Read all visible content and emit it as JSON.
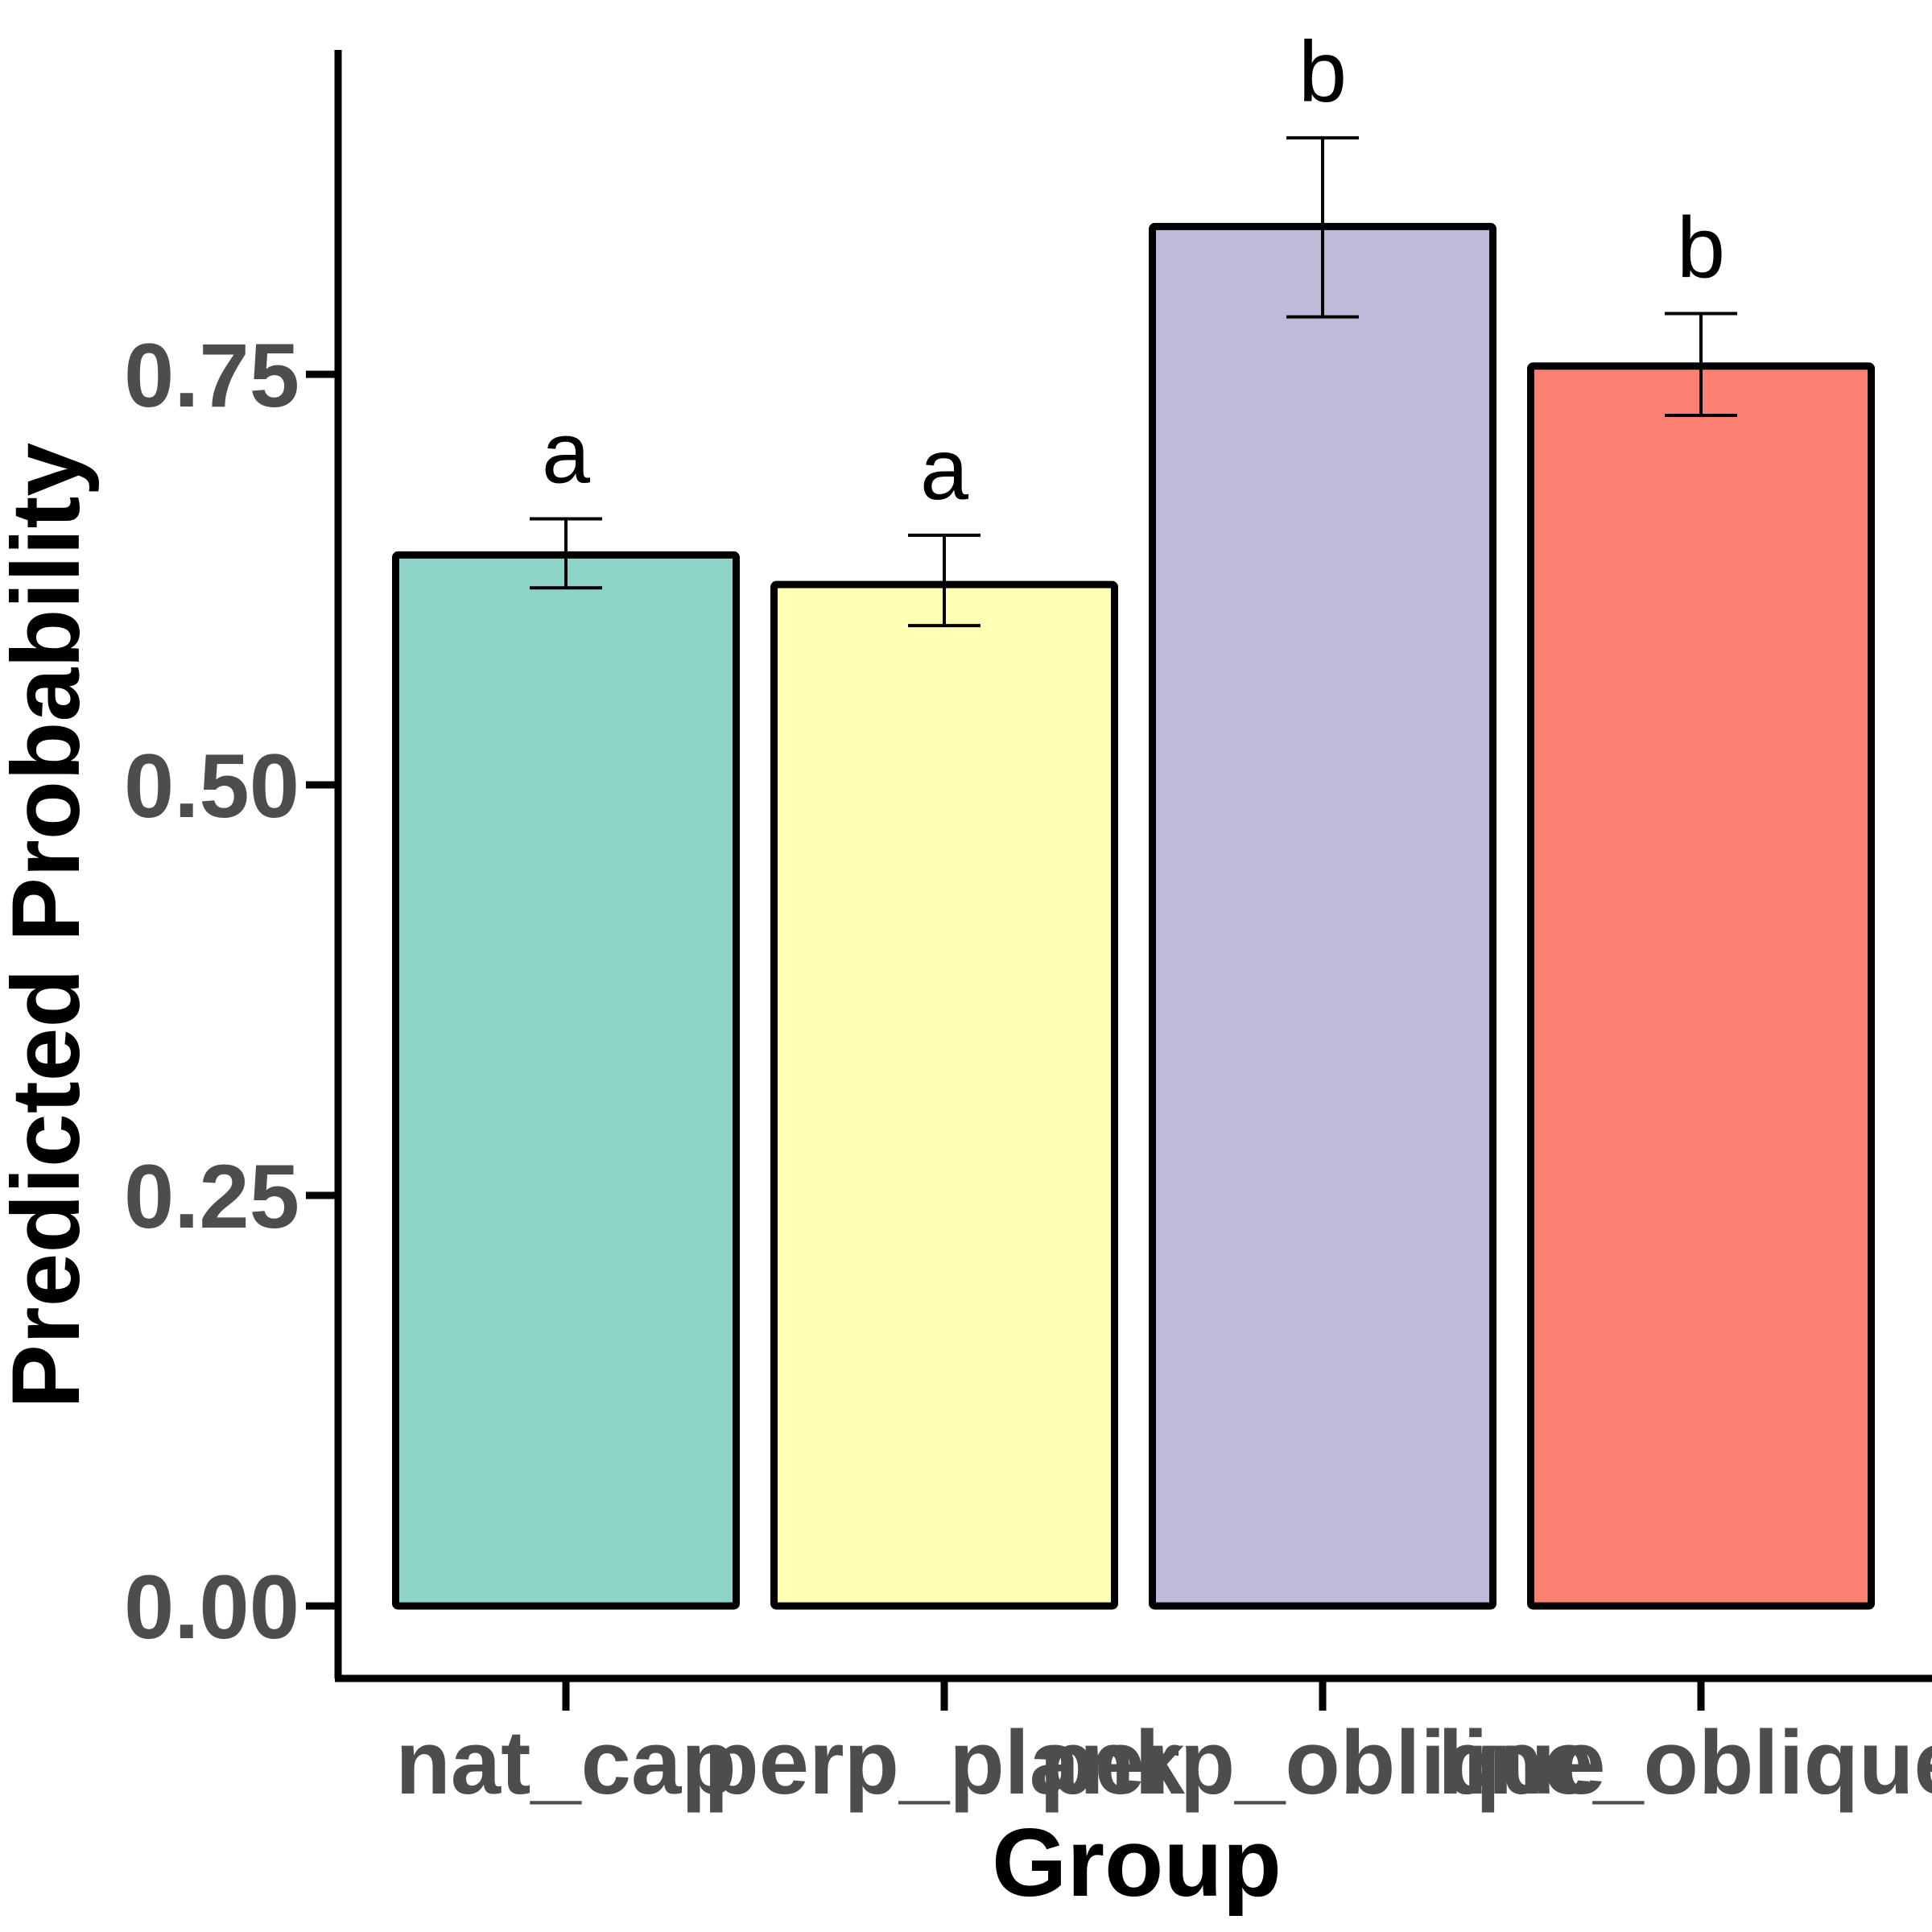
{
  "chart_data": {
    "type": "bar",
    "categories": [
      "nat_cap",
      "perp_plank",
      "perp_oblique",
      "line_oblique"
    ],
    "values": [
      0.64,
      0.622,
      0.84,
      0.755
    ],
    "error_low": [
      0.62,
      0.597,
      0.785,
      0.725
    ],
    "error_high": [
      0.662,
      0.652,
      0.894,
      0.787
    ],
    "significance": [
      "a",
      "a",
      "b",
      "b"
    ],
    "colors": [
      "#8dd3c7",
      "#ffffb3",
      "#bebada",
      "#fb8072"
    ],
    "xlabel": "Group",
    "ylabel": "Predicted Probability",
    "yticks": [
      "0.00",
      "0.25",
      "0.50",
      "0.75"
    ],
    "ylim": [
      0,
      1
    ],
    "grid": false,
    "legend": "none"
  }
}
